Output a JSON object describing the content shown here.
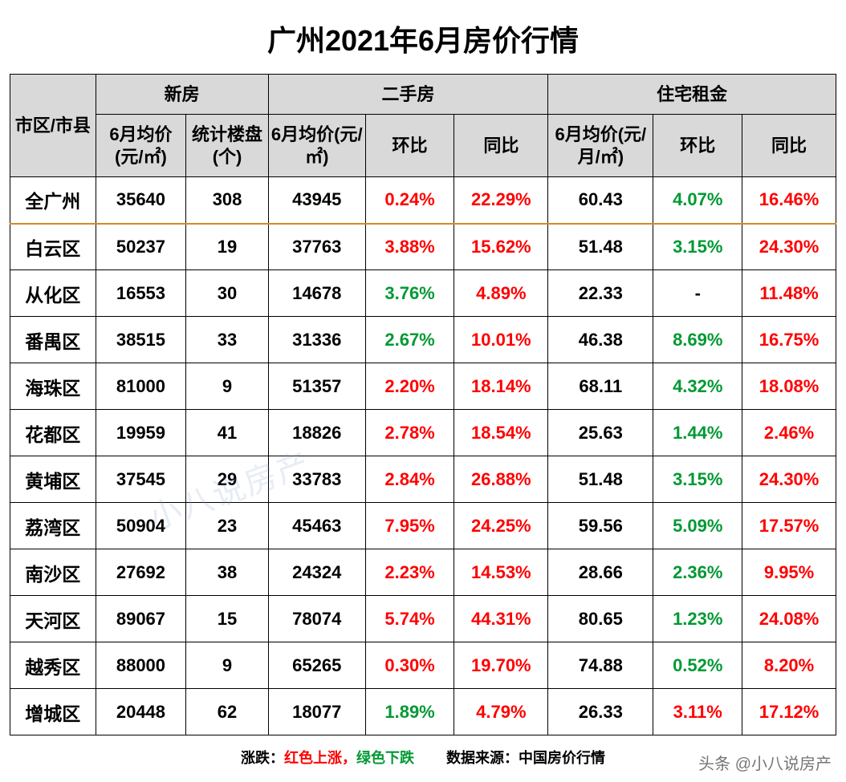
{
  "title": "广州2021年6月房价行情",
  "watermark_center": "小八说房产",
  "watermark_corner": "头条 @小八说房产",
  "footer_left_label": "涨跌：",
  "footer_left_red": "红色上涨，",
  "footer_left_green": "绿色下跌",
  "footer_source_label": "数据来源：",
  "footer_source_value": "中国房价行情",
  "colors": {
    "header_bg": "#d9d9d9",
    "border": "#000000",
    "up": "#ff0000",
    "down": "#009933",
    "summary_divider": "#d28a2a",
    "watermark": "rgba(120,150,200,0.18)"
  },
  "header": {
    "district": "市区/市县",
    "group_new": "新房",
    "group_second": "二手房",
    "group_rent": "住宅租金",
    "new_price": "6月均价(元/㎡)",
    "new_count": "统计楼盘(个)",
    "second_price": "6月均价(元/㎡)",
    "second_mom": "环比",
    "second_yoy": "同比",
    "rent_price": "6月均价(元/月/㎡)",
    "rent_mom": "环比",
    "rent_yoy": "同比"
  },
  "rows": [
    {
      "district": "全广州",
      "new_price": "35640",
      "new_count": "308",
      "second_price": "43945",
      "second_mom": "0.24%",
      "second_mom_dir": "up",
      "second_yoy": "22.29%",
      "second_yoy_dir": "up",
      "rent_price": "60.43",
      "rent_mom": "4.07%",
      "rent_mom_dir": "down",
      "rent_yoy": "16.46%",
      "rent_yoy_dir": "up",
      "summary": true
    },
    {
      "district": "白云区",
      "new_price": "50237",
      "new_count": "19",
      "second_price": "37763",
      "second_mom": "3.88%",
      "second_mom_dir": "up",
      "second_yoy": "15.62%",
      "second_yoy_dir": "up",
      "rent_price": "51.48",
      "rent_mom": "3.15%",
      "rent_mom_dir": "down",
      "rent_yoy": "24.30%",
      "rent_yoy_dir": "up"
    },
    {
      "district": "从化区",
      "new_price": "16553",
      "new_count": "30",
      "second_price": "14678",
      "second_mom": "3.76%",
      "second_mom_dir": "down",
      "second_yoy": "4.89%",
      "second_yoy_dir": "up",
      "rent_price": "22.33",
      "rent_mom": "-",
      "rent_mom_dir": "none",
      "rent_yoy": "11.48%",
      "rent_yoy_dir": "up"
    },
    {
      "district": "番禺区",
      "new_price": "38515",
      "new_count": "33",
      "second_price": "31336",
      "second_mom": "2.67%",
      "second_mom_dir": "down",
      "second_yoy": "10.01%",
      "second_yoy_dir": "up",
      "rent_price": "46.38",
      "rent_mom": "8.69%",
      "rent_mom_dir": "down",
      "rent_yoy": "16.75%",
      "rent_yoy_dir": "up"
    },
    {
      "district": "海珠区",
      "new_price": "81000",
      "new_count": "9",
      "second_price": "51357",
      "second_mom": "2.20%",
      "second_mom_dir": "up",
      "second_yoy": "18.14%",
      "second_yoy_dir": "up",
      "rent_price": "68.11",
      "rent_mom": "4.32%",
      "rent_mom_dir": "down",
      "rent_yoy": "18.08%",
      "rent_yoy_dir": "up"
    },
    {
      "district": "花都区",
      "new_price": "19959",
      "new_count": "41",
      "second_price": "18826",
      "second_mom": "2.78%",
      "second_mom_dir": "up",
      "second_yoy": "18.54%",
      "second_yoy_dir": "up",
      "rent_price": "25.63",
      "rent_mom": "1.44%",
      "rent_mom_dir": "down",
      "rent_yoy": "2.46%",
      "rent_yoy_dir": "up"
    },
    {
      "district": "黄埔区",
      "new_price": "37545",
      "new_count": "29",
      "second_price": "33783",
      "second_mom": "2.84%",
      "second_mom_dir": "up",
      "second_yoy": "26.88%",
      "second_yoy_dir": "up",
      "rent_price": "51.48",
      "rent_mom": "3.15%",
      "rent_mom_dir": "down",
      "rent_yoy": "24.30%",
      "rent_yoy_dir": "up"
    },
    {
      "district": "荔湾区",
      "new_price": "50904",
      "new_count": "23",
      "second_price": "45463",
      "second_mom": "7.95%",
      "second_mom_dir": "up",
      "second_yoy": "24.25%",
      "second_yoy_dir": "up",
      "rent_price": "59.56",
      "rent_mom": "5.09%",
      "rent_mom_dir": "down",
      "rent_yoy": "17.57%",
      "rent_yoy_dir": "up"
    },
    {
      "district": "南沙区",
      "new_price": "27692",
      "new_count": "38",
      "second_price": "24324",
      "second_mom": "2.23%",
      "second_mom_dir": "up",
      "second_yoy": "14.53%",
      "second_yoy_dir": "up",
      "rent_price": "28.66",
      "rent_mom": "2.36%",
      "rent_mom_dir": "down",
      "rent_yoy": "9.95%",
      "rent_yoy_dir": "up"
    },
    {
      "district": "天河区",
      "new_price": "89067",
      "new_count": "15",
      "second_price": "78074",
      "second_mom": "5.74%",
      "second_mom_dir": "up",
      "second_yoy": "44.31%",
      "second_yoy_dir": "up",
      "rent_price": "80.65",
      "rent_mom": "1.23%",
      "rent_mom_dir": "down",
      "rent_yoy": "24.08%",
      "rent_yoy_dir": "up"
    },
    {
      "district": "越秀区",
      "new_price": "88000",
      "new_count": "9",
      "second_price": "65265",
      "second_mom": "0.30%",
      "second_mom_dir": "up",
      "second_yoy": "19.70%",
      "second_yoy_dir": "up",
      "rent_price": "74.88",
      "rent_mom": "0.52%",
      "rent_mom_dir": "down",
      "rent_yoy": "8.20%",
      "rent_yoy_dir": "up"
    },
    {
      "district": "增城区",
      "new_price": "20448",
      "new_count": "62",
      "second_price": "18077",
      "second_mom": "1.89%",
      "second_mom_dir": "down",
      "second_yoy": "4.79%",
      "second_yoy_dir": "up",
      "rent_price": "26.33",
      "rent_mom": "3.11%",
      "rent_mom_dir": "up",
      "rent_yoy": "17.12%",
      "rent_yoy_dir": "up"
    }
  ]
}
